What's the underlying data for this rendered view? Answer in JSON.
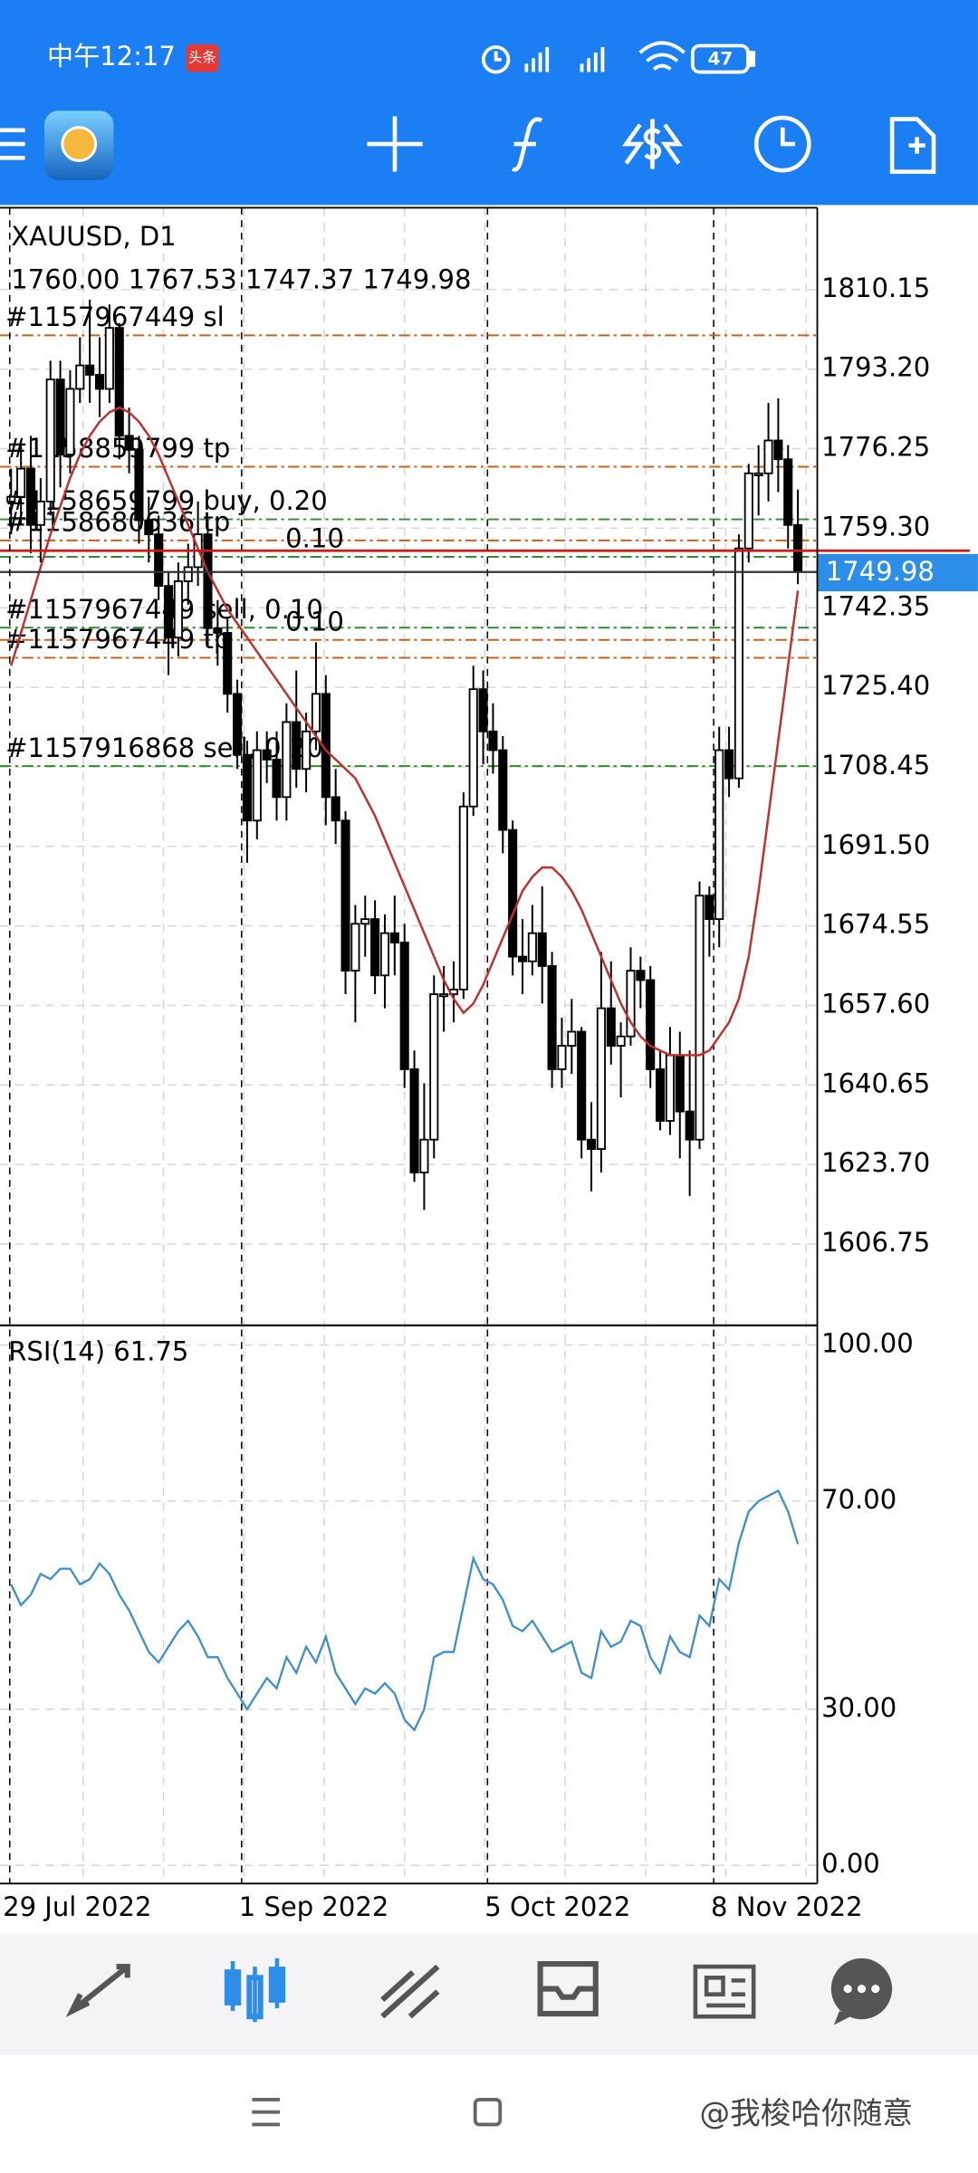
{
  "status_bar": {
    "time": "中午12:17",
    "badge": "头条",
    "battery": "47"
  },
  "chart_data": {
    "type": "candlestick",
    "symbol": "XAUUSD, D1",
    "ohlc": "1760.00 1767.53 1747.37 1749.98",
    "categories": [
      "29 Jul 2022",
      null,
      null,
      null,
      null,
      null,
      null,
      null,
      null,
      null,
      null,
      null,
      null,
      null,
      null,
      null,
      null,
      null,
      null,
      null,
      null,
      null,
      null,
      null,
      "1 Sep 2022",
      null,
      null,
      null,
      null,
      null,
      null,
      null,
      null,
      null,
      null,
      null,
      null,
      null,
      null,
      null,
      null,
      null,
      null,
      null,
      null,
      null,
      null,
      null,
      null,
      "5 Oct 2022",
      null,
      null,
      null,
      null,
      null,
      null,
      null,
      null,
      null,
      null,
      null,
      null,
      null,
      null,
      null,
      null,
      null,
      null,
      null,
      null,
      null,
      null,
      "8 Nov 2022",
      null,
      null,
      null,
      null,
      null,
      null,
      null,
      null
    ],
    "open": [
      1765,
      1766,
      1772,
      1760,
      1765,
      1791,
      1775,
      1789,
      1794,
      1792,
      1789,
      1802,
      1779,
      1776,
      1761,
      1758,
      1747,
      1736,
      1748,
      1751,
      1758,
      1738,
      1737,
      1724,
      1711,
      1697,
      1712,
      1710,
      1702,
      1718,
      1708,
      1716,
      1724,
      1702,
      1697,
      1665,
      1675,
      1676,
      1664,
      1673,
      1671,
      1644,
      1622,
      1629,
      1660,
      1660,
      1661,
      1700,
      1725,
      1716,
      1712,
      1695,
      1668,
      1667,
      1673,
      1666,
      1644,
      1649,
      1652,
      1629,
      1627,
      1657,
      1649,
      1651,
      1665,
      1663,
      1644,
      1633,
      1647,
      1635,
      1629,
      1681,
      1676,
      1712,
      1706,
      1755,
      1771,
      1771,
      1778,
      1774,
      1760
    ],
    "high": [
      1772,
      1778,
      1779,
      1770,
      1795,
      1795,
      1793,
      1800,
      1808,
      1800,
      1807,
      1803,
      1785,
      1779,
      1766,
      1762,
      1750,
      1752,
      1756,
      1765,
      1761,
      1744,
      1740,
      1727,
      1714,
      1716,
      1716,
      1716,
      1722,
      1729,
      1720,
      1735,
      1728,
      1708,
      1699,
      1679,
      1681,
      1680,
      1677,
      1681,
      1675,
      1648,
      1641,
      1664,
      1666,
      1667,
      1703,
      1730,
      1729,
      1722,
      1715,
      1697,
      1676,
      1679,
      1683,
      1669,
      1655,
      1659,
      1653,
      1637,
      1669,
      1667,
      1654,
      1670,
      1668,
      1666,
      1648,
      1653,
      1652,
      1648,
      1684,
      1683,
      1717,
      1717,
      1758,
      1773,
      1777,
      1786,
      1787,
      1777,
      1767.53
    ],
    "low": [
      1758,
      1760,
      1754,
      1752,
      1762,
      1768,
      1771,
      1786,
      1786,
      1783,
      1786,
      1774,
      1771,
      1756,
      1752,
      1744,
      1728,
      1732,
      1743,
      1747,
      1734,
      1730,
      1720,
      1708,
      1688,
      1693,
      1705,
      1697,
      1697,
      1704,
      1703,
      1712,
      1696,
      1692,
      1660,
      1654,
      1668,
      1660,
      1657,
      1664,
      1640,
      1620,
      1614,
      1625,
      1652,
      1654,
      1659,
      1698,
      1709,
      1707,
      1690,
      1664,
      1660,
      1664,
      1658,
      1640,
      1640,
      1643,
      1625,
      1618,
      1622,
      1645,
      1638,
      1649,
      1657,
      1640,
      1631,
      1630,
      1625,
      1617,
      1627,
      1668,
      1670,
      1702,
      1704,
      1752,
      1762,
      1765,
      1767,
      1755,
      1747.37
    ],
    "close": [
      1766,
      1772,
      1760,
      1765,
      1791,
      1775,
      1789,
      1794,
      1792,
      1789,
      1802,
      1779,
      1776,
      1761,
      1758,
      1747,
      1736,
      1748,
      1751,
      1758,
      1738,
      1737,
      1724,
      1711,
      1697,
      1712,
      1710,
      1702,
      1718,
      1708,
      1716,
      1724,
      1702,
      1697,
      1665,
      1675,
      1676,
      1664,
      1673,
      1671,
      1644,
      1622,
      1629,
      1660,
      1660,
      1661,
      1700,
      1725,
      1716,
      1712,
      1695,
      1668,
      1667,
      1673,
      1666,
      1644,
      1649,
      1652,
      1629,
      1627,
      1657,
      1649,
      1651,
      1665,
      1663,
      1644,
      1633,
      1647,
      1635,
      1629,
      1681,
      1676,
      1712,
      1706,
      1755,
      1771,
      1771,
      1778,
      1774,
      1760,
      1749.98
    ],
    "ma": {
      "color": "#c0302a",
      "values": [
        1730,
        1737,
        1744,
        1751,
        1758,
        1764,
        1770,
        1775,
        1779,
        1782,
        1784,
        1785,
        1784,
        1782,
        1779,
        1775,
        1770,
        1765,
        1760,
        1755,
        1750,
        1746,
        1742,
        1739,
        1736,
        1733,
        1730,
        1727,
        1724,
        1721,
        1718,
        1715,
        1712,
        1710,
        1708,
        1706,
        1702,
        1698,
        1693,
        1688,
        1683,
        1678,
        1673,
        1668,
        1663,
        1659,
        1656,
        1658,
        1662,
        1667,
        1672,
        1677,
        1682,
        1685,
        1687,
        1687,
        1685,
        1682,
        1678,
        1673,
        1668,
        1663,
        1658,
        1654,
        1651,
        1649,
        1648,
        1647,
        1647,
        1647,
        1647,
        1648,
        1651,
        1654,
        1659,
        1668,
        1682,
        1698,
        1714,
        1730,
        1746
      ]
    },
    "ylim": [
      1590,
      1827.6
    ],
    "yticks": [
      1810.15,
      {
        "value": 1793.2,
        "label": "1793.20"
      },
      1776.25,
      {
        "value": 1759.3,
        "label": "1759.30"
      },
      1742.35,
      {
        "value": 1725.4,
        "label": "1725.40"
      },
      1708.45,
      {
        "value": 1691.5,
        "label": "1691.50"
      },
      1674.55,
      {
        "value": 1657.6,
        "label": "1657.60"
      },
      1640.65,
      {
        "value": 1623.7,
        "label": "1623.70"
      },
      1606.75
    ],
    "grid": true,
    "bid": 1749.98,
    "ask": 1754.5,
    "orders": [
      {
        "label": "#1157967449 sl",
        "price": 1800.4,
        "color": "#c8601e"
      },
      {
        "label": "#1158859799 tp",
        "price": 1772.4,
        "color": "#c8601e"
      },
      {
        "label": "#1158659799 buy, 0.20",
        "price": 1761.2,
        "color": "#2e8b2e"
      },
      {
        "label": "#1158680636 tp",
        "price": 1756.7,
        "color": "#c8601e"
      },
      {
        "label": "0.10",
        "price": 1753.2,
        "color": "#2e8b2e"
      },
      {
        "label": "#1157967449 sell, 0.10",
        "price": 1738.1,
        "color": "#2e8b2e"
      },
      {
        "label": "0.10",
        "price": 1735.5,
        "color": "#c8601e"
      },
      {
        "label": "#1157967449 tp",
        "price": 1731.7,
        "color": "#c8601e"
      },
      {
        "label": "#1157916868 sell, 0.20",
        "price": 1708.6,
        "color": "#2e8b2e"
      }
    ],
    "indicator": {
      "type": "line",
      "title": "RSI(14) 61.75",
      "color": "#3a8fd0",
      "ylim": [
        -3.5,
        103.5
      ],
      "yticks": [
        {
          "value": 100,
          "label": "100.00"
        },
        {
          "value": 70,
          "label": "70.00"
        },
        {
          "value": 30,
          "label": "30.00"
        },
        {
          "value": 0,
          "label": "0.00"
        }
      ],
      "values": [
        54,
        50,
        52,
        56,
        55,
        57,
        57,
        54,
        55,
        58,
        56,
        52,
        49,
        45,
        41,
        39,
        42,
        45,
        47,
        44,
        40,
        40,
        36,
        33,
        30,
        33,
        36,
        34,
        40,
        37,
        42,
        39,
        44,
        37,
        34,
        31,
        34,
        33,
        35,
        33,
        28,
        26,
        30,
        40,
        41,
        41,
        50,
        59,
        55,
        54,
        51,
        46,
        45,
        47,
        44,
        41,
        42,
        43,
        37,
        36,
        45,
        42,
        43,
        47,
        46,
        40,
        37,
        44,
        41,
        40,
        48,
        46,
        55,
        53,
        62,
        68,
        70,
        71,
        72,
        68,
        61.75
      ]
    }
  },
  "footer": {
    "watermark": "@我梭哈你随意"
  }
}
